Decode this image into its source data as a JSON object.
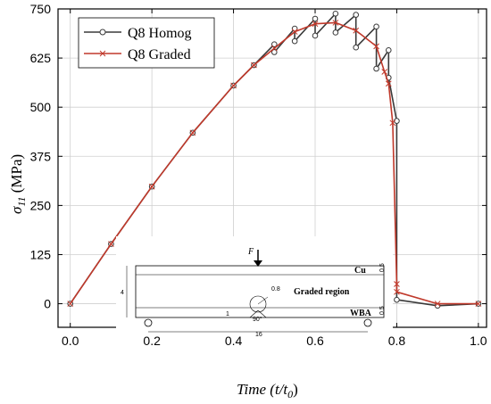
{
  "chart_data": {
    "type": "line",
    "xlabel_main": "Time (",
    "xlabel_var": "t/t",
    "xlabel_sub": "0",
    "xlabel_close": ")",
    "ylabel_sym": "σ",
    "ylabel_sub": "11",
    "ylabel_unit": " (MPa)",
    "xlim": [
      -0.03,
      1.02
    ],
    "ylim": [
      -60,
      750
    ],
    "x_ticks": [
      0.0,
      0.2,
      0.4,
      0.6,
      0.8,
      1.0
    ],
    "x_tick_labels": [
      "0.0",
      "0.2",
      "0.4",
      "0.6",
      "0.8",
      "1.0"
    ],
    "y_ticks": [
      0,
      125,
      250,
      375,
      500,
      625,
      750
    ],
    "y_tick_labels": [
      "0",
      "125",
      "250",
      "375",
      "500",
      "625",
      "750"
    ],
    "grid": true,
    "legend_position": "top-left",
    "series": [
      {
        "name": "Q8 Homog",
        "color": "#3a3a3a",
        "marker": "open-circle",
        "x": [
          0.0,
          0.1,
          0.2,
          0.3,
          0.4,
          0.45,
          0.5,
          0.5,
          0.55,
          0.55,
          0.6,
          0.6,
          0.65,
          0.65,
          0.7,
          0.7,
          0.75,
          0.75,
          0.78,
          0.78,
          0.8,
          0.8,
          0.9,
          1.0
        ],
        "y": [
          0,
          152,
          298,
          435,
          555,
          607,
          660,
          640,
          700,
          668,
          725,
          682,
          738,
          690,
          735,
          652,
          705,
          598,
          645,
          575,
          465,
          10,
          -5,
          0
        ]
      },
      {
        "name": "Q8 Graded",
        "color": "#c0392b",
        "marker": "x",
        "x": [
          0.0,
          0.1,
          0.2,
          0.3,
          0.4,
          0.45,
          0.5,
          0.55,
          0.6,
          0.65,
          0.7,
          0.75,
          0.77,
          0.78,
          0.79,
          0.8,
          0.8,
          0.9,
          1.0
        ],
        "y": [
          0,
          152,
          298,
          435,
          555,
          607,
          650,
          692,
          712,
          715,
          695,
          655,
          590,
          560,
          460,
          50,
          30,
          0,
          0
        ]
      }
    ]
  },
  "inset": {
    "force_label": "F",
    "top_layer_label": "Cu",
    "middle_label": "Graded region",
    "bottom_layer_label": "WBA",
    "height_dim": "4",
    "length_dim": "16",
    "radius_dim": "0.8",
    "angle_dim": "90°",
    "notch_dim": "1",
    "cu_thickness": "0.5",
    "wba_thickness": "0.5"
  }
}
